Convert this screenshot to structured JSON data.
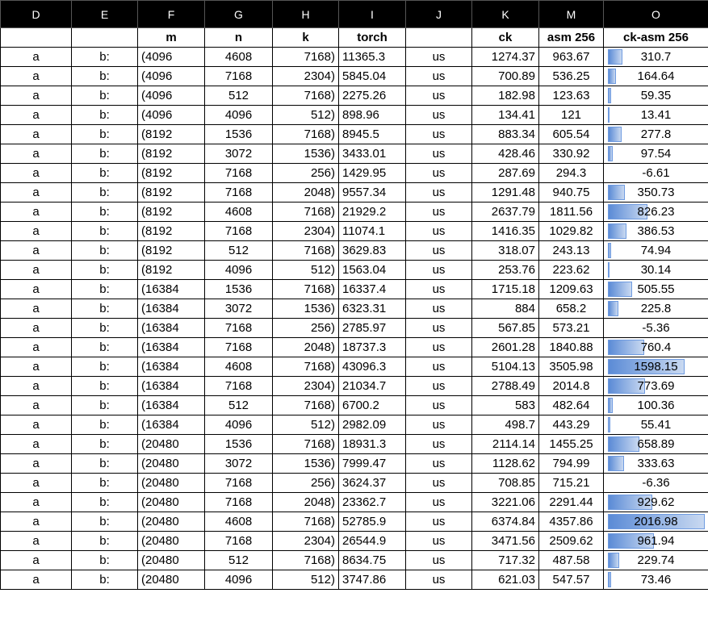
{
  "column_letters": [
    "D",
    "E",
    "F",
    "G",
    "H",
    "I",
    "J",
    "K",
    "M",
    "O"
  ],
  "headers": [
    "",
    "",
    "m",
    "n",
    "k",
    "torch",
    "",
    "ck",
    "asm 256",
    "ck-asm 256"
  ],
  "databar_max": 2016.98,
  "rows": [
    [
      "a",
      "b:",
      "(4096",
      "4608",
      "7168)",
      "11365.3",
      "us",
      "1274.37",
      "963.67",
      "310.7"
    ],
    [
      "a",
      "b:",
      "(4096",
      "7168",
      "2304)",
      "5845.04",
      "us",
      "700.89",
      "536.25",
      "164.64"
    ],
    [
      "a",
      "b:",
      "(4096",
      "512",
      "7168)",
      "2275.26",
      "us",
      "182.98",
      "123.63",
      "59.35"
    ],
    [
      "a",
      "b:",
      "(4096",
      "4096",
      "512)",
      "898.96",
      "us",
      "134.41",
      "121",
      "13.41"
    ],
    [
      "a",
      "b:",
      "(8192",
      "1536",
      "7168)",
      "8945.5",
      "us",
      "883.34",
      "605.54",
      "277.8"
    ],
    [
      "a",
      "b:",
      "(8192",
      "3072",
      "1536)",
      "3433.01",
      "us",
      "428.46",
      "330.92",
      "97.54"
    ],
    [
      "a",
      "b:",
      "(8192",
      "7168",
      "256)",
      "1429.95",
      "us",
      "287.69",
      "294.3",
      "-6.61"
    ],
    [
      "a",
      "b:",
      "(8192",
      "7168",
      "2048)",
      "9557.34",
      "us",
      "1291.48",
      "940.75",
      "350.73"
    ],
    [
      "a",
      "b:",
      "(8192",
      "4608",
      "7168)",
      "21929.2",
      "us",
      "2637.79",
      "1811.56",
      "826.23"
    ],
    [
      "a",
      "b:",
      "(8192",
      "7168",
      "2304)",
      "11074.1",
      "us",
      "1416.35",
      "1029.82",
      "386.53"
    ],
    [
      "a",
      "b:",
      "(8192",
      "512",
      "7168)",
      "3629.83",
      "us",
      "318.07",
      "243.13",
      "74.94"
    ],
    [
      "a",
      "b:",
      "(8192",
      "4096",
      "512)",
      "1563.04",
      "us",
      "253.76",
      "223.62",
      "30.14"
    ],
    [
      "a",
      "b:",
      "(16384",
      "1536",
      "7168)",
      "16337.4",
      "us",
      "1715.18",
      "1209.63",
      "505.55"
    ],
    [
      "a",
      "b:",
      "(16384",
      "3072",
      "1536)",
      "6323.31",
      "us",
      "884",
      "658.2",
      "225.8"
    ],
    [
      "a",
      "b:",
      "(16384",
      "7168",
      "256)",
      "2785.97",
      "us",
      "567.85",
      "573.21",
      "-5.36"
    ],
    [
      "a",
      "b:",
      "(16384",
      "7168",
      "2048)",
      "18737.3",
      "us",
      "2601.28",
      "1840.88",
      "760.4"
    ],
    [
      "a",
      "b:",
      "(16384",
      "4608",
      "7168)",
      "43096.3",
      "us",
      "5104.13",
      "3505.98",
      "1598.15"
    ],
    [
      "a",
      "b:",
      "(16384",
      "7168",
      "2304)",
      "21034.7",
      "us",
      "2788.49",
      "2014.8",
      "773.69"
    ],
    [
      "a",
      "b:",
      "(16384",
      "512",
      "7168)",
      "6700.2",
      "us",
      "583",
      "482.64",
      "100.36"
    ],
    [
      "a",
      "b:",
      "(16384",
      "4096",
      "512)",
      "2982.09",
      "us",
      "498.7",
      "443.29",
      "55.41"
    ],
    [
      "a",
      "b:",
      "(20480",
      "1536",
      "7168)",
      "18931.3",
      "us",
      "2114.14",
      "1455.25",
      "658.89"
    ],
    [
      "a",
      "b:",
      "(20480",
      "3072",
      "1536)",
      "7999.47",
      "us",
      "1128.62",
      "794.99",
      "333.63"
    ],
    [
      "a",
      "b:",
      "(20480",
      "7168",
      "256)",
      "3624.37",
      "us",
      "708.85",
      "715.21",
      "-6.36"
    ],
    [
      "a",
      "b:",
      "(20480",
      "7168",
      "2048)",
      "23362.7",
      "us",
      "3221.06",
      "2291.44",
      "929.62"
    ],
    [
      "a",
      "b:",
      "(20480",
      "4608",
      "7168)",
      "52785.9",
      "us",
      "6374.84",
      "4357.86",
      "2016.98"
    ],
    [
      "a",
      "b:",
      "(20480",
      "7168",
      "2304)",
      "26544.9",
      "us",
      "3471.56",
      "2509.62",
      "961.94"
    ],
    [
      "a",
      "b:",
      "(20480",
      "512",
      "7168)",
      "8634.75",
      "us",
      "717.32",
      "487.58",
      "229.74"
    ],
    [
      "a",
      "b:",
      "(20480",
      "4096",
      "512)",
      "3747.86",
      "us",
      "621.03",
      "547.57",
      "73.46"
    ]
  ],
  "colors": {
    "header_bg": "#000000",
    "header_text": "#ffffff",
    "databar": "#5b8bd6"
  }
}
